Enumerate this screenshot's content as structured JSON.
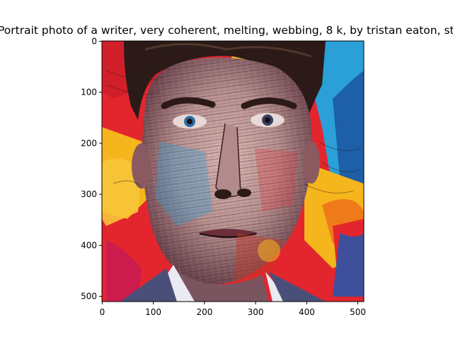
{
  "figure": {
    "title": "Portrait photo of a writer,  very coherent, melting, webbing, 8 k, by tristan eaton, stanley artgerm"
  },
  "axes": {
    "x_ticks": [
      "0",
      "100",
      "200",
      "300",
      "400",
      "500"
    ],
    "y_ticks": [
      "0",
      "100",
      "200",
      "300",
      "400",
      "500"
    ],
    "x_range": [
      0,
      511
    ],
    "y_range": [
      0,
      511
    ],
    "y_inverted": true
  },
  "image": {
    "subject": "stylized multicolor portrait of a man's face with melting webbed line patterns",
    "palette": {
      "background_blue": "#2a9fd8",
      "background_red": "#e3262e",
      "background_yellow": "#f5b51d",
      "skin_tone": "#c9a7a4",
      "line_dark": "#3a1f24",
      "hair": "#2b1a17",
      "suit": "#4a4f7a"
    }
  }
}
